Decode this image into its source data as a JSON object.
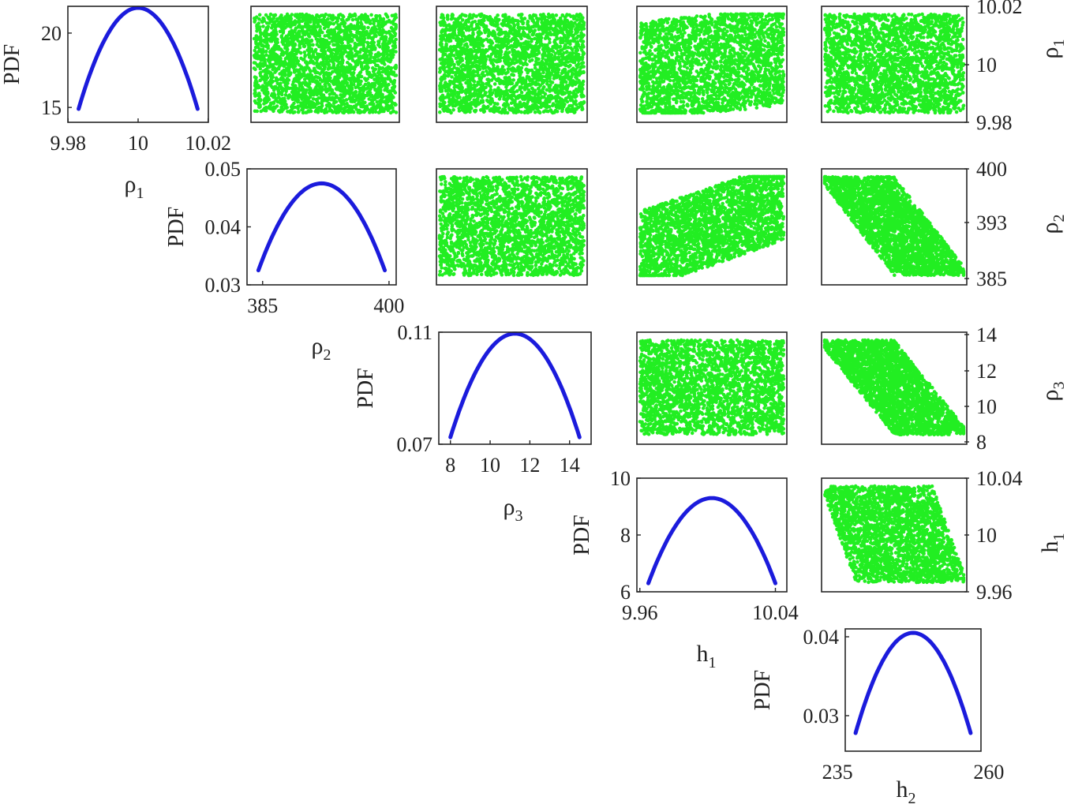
{
  "chart_data": {
    "type": "scatter-matrix",
    "colors": {
      "pdf_line": "#1b1bdc",
      "scatter": "#22ee22",
      "frame": "#262626",
      "text": "#222222"
    },
    "pdf_ylabel": "PDF",
    "variables": [
      {
        "id": "rho1",
        "symbol": "ρ",
        "sub": "1",
        "range": [
          9.983,
          10.017
        ],
        "ticks": [
          "9.98",
          "10",
          "10.02"
        ],
        "tick_values": [
          9.98,
          10.0,
          10.02
        ]
      },
      {
        "id": "rho2",
        "symbol": "ρ",
        "sub": "2",
        "range": [
          384.5,
          399.5
        ],
        "ticks": [
          "385",
          "400"
        ],
        "tick_values": [
          385,
          400
        ]
      },
      {
        "id": "rho3",
        "symbol": "ρ",
        "sub": "3",
        "range": [
          8.0,
          14.5
        ],
        "ticks": [
          "8",
          "10",
          "12",
          "14"
        ],
        "tick_values": [
          8,
          10,
          12,
          14
        ]
      },
      {
        "id": "h1",
        "symbol": "h",
        "sub": "1",
        "range": [
          9.965,
          10.04
        ],
        "ticks": [
          "9.96",
          "10.04"
        ],
        "tick_values": [
          9.96,
          10.04
        ]
      },
      {
        "id": "h2",
        "symbol": "h",
        "sub": "2",
        "range": [
          238,
          257
        ],
        "ticks": [
          "235",
          "260"
        ],
        "tick_values": [
          235,
          260
        ]
      }
    ],
    "pdfs": [
      {
        "var": "rho1",
        "x": [
          9.983,
          10.0,
          10.017
        ],
        "y": [
          14.9,
          21.7,
          14.9
        ],
        "ylim": [
          14,
          21.8
        ],
        "yticks": [
          "15",
          "20"
        ],
        "ytick_values": [
          15,
          20
        ]
      },
      {
        "var": "rho2",
        "x": [
          384.5,
          392.0,
          399.5
        ],
        "y": [
          0.0325,
          0.0475,
          0.0325
        ],
        "ylim": [
          0.03,
          0.05
        ],
        "yticks": [
          "0.03",
          "0.04",
          "0.05"
        ],
        "ytick_values": [
          0.03,
          0.04,
          0.05
        ]
      },
      {
        "var": "rho3",
        "x": [
          8.0,
          11.25,
          14.5
        ],
        "y": [
          0.0725,
          0.1095,
          0.0725
        ],
        "ylim": [
          0.07,
          0.11
        ],
        "yticks": [
          "0.07",
          "0.11"
        ],
        "ytick_values": [
          0.07,
          0.11
        ]
      },
      {
        "var": "h1",
        "x": [
          9.965,
          10.0025,
          10.04
        ],
        "y": [
          6.3,
          9.3,
          6.3
        ],
        "ylim": [
          6,
          10
        ],
        "yticks": [
          "6",
          "8",
          "10"
        ],
        "ytick_values": [
          6,
          8,
          10
        ]
      },
      {
        "var": "h2",
        "x": [
          238,
          247.5,
          257
        ],
        "y": [
          0.0278,
          0.0405,
          0.0278
        ],
        "ylim": [
          0.0255,
          0.041
        ],
        "yticks": [
          "0.03",
          "0.04"
        ],
        "ytick_values": [
          0.03,
          0.04
        ]
      }
    ],
    "right_axes": [
      {
        "var": "rho1",
        "ticks": [
          "9.98",
          "10",
          "10.02"
        ]
      },
      {
        "var": "rho2",
        "ticks": [
          "385",
          "393",
          "400"
        ]
      },
      {
        "var": "rho3",
        "ticks": [
          "8",
          "10",
          "12",
          "14"
        ]
      },
      {
        "var": "h1",
        "ticks": [
          "9.96",
          "10",
          "10.04"
        ]
      }
    ],
    "scatters": [
      {
        "x": "rho2",
        "y": "rho1",
        "pattern": "uniform"
      },
      {
        "x": "rho3",
        "y": "rho1",
        "pattern": "uniform"
      },
      {
        "x": "h1",
        "y": "rho1",
        "pattern": "weak-positive"
      },
      {
        "x": "h2",
        "y": "rho1",
        "pattern": "uniform"
      },
      {
        "x": "rho3",
        "y": "rho2",
        "pattern": "uniform"
      },
      {
        "x": "h1",
        "y": "rho2",
        "pattern": "positive"
      },
      {
        "x": "h2",
        "y": "rho2",
        "pattern": "strong-negative"
      },
      {
        "x": "h1",
        "y": "rho3",
        "pattern": "uniform"
      },
      {
        "x": "h2",
        "y": "rho3",
        "pattern": "strong-negative"
      },
      {
        "x": "h2",
        "y": "h1",
        "pattern": "negative"
      }
    ],
    "points_per_scatter": 2500
  }
}
